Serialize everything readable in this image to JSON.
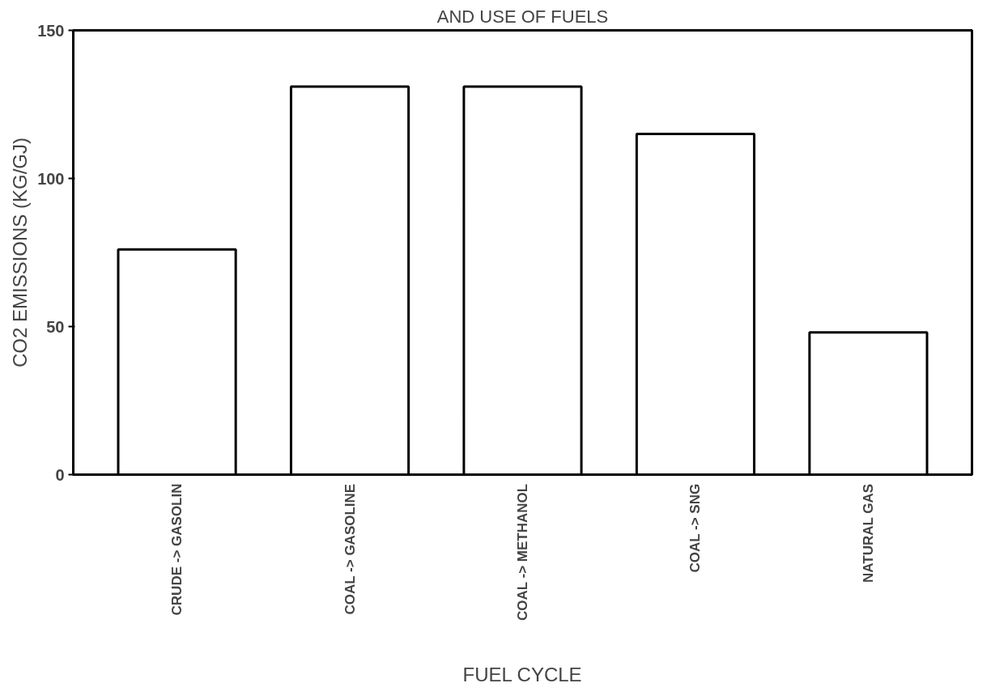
{
  "chart_data": {
    "type": "bar",
    "title": "AND USE OF FUELS",
    "xlabel": "FUEL CYCLE",
    "ylabel": "CO2 EMISSIONS (KG/GJ)",
    "categories": [
      "CRUDE -> GASOLIN",
      "COAL -> GASOLINE",
      "COAL -> METHANOL",
      "COAL -> SNG",
      "NATURAL GAS"
    ],
    "values": [
      76,
      131,
      131,
      115,
      48
    ],
    "color": "#ffffff",
    "ylim": [
      0,
      150
    ],
    "yticks": [
      0,
      50,
      100,
      150
    ],
    "grid": false
  }
}
